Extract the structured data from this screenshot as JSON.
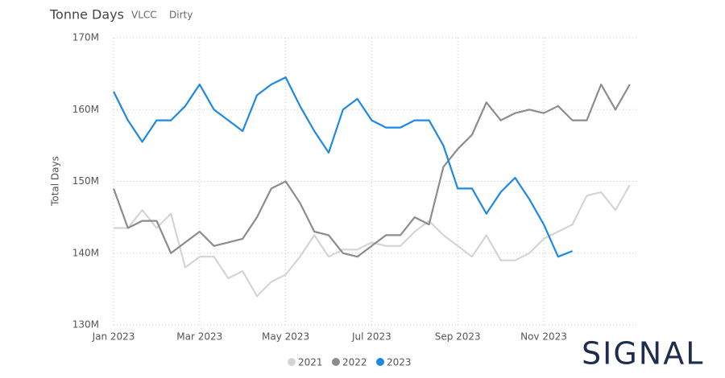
{
  "chart_data": {
    "type": "line",
    "title": "Tonne Days",
    "subtitle_tags": [
      "VLCC",
      "Dirty"
    ],
    "y_label": "Total Days",
    "categories": [
      "Jan 2023",
      null,
      null,
      null,
      null,
      null,
      "Mar 2023",
      null,
      null,
      null,
      null,
      null,
      "May 2023",
      null,
      null,
      null,
      null,
      null,
      "Jul 2023",
      null,
      null,
      null,
      null,
      null,
      "Sep 2023",
      null,
      null,
      null,
      null,
      null,
      "Nov 2023",
      null,
      null,
      null,
      null,
      null,
      null
    ],
    "series": [
      {
        "name": "2021",
        "color": "#d4d4d4",
        "values": [
          143.5,
          143.5,
          146,
          143.5,
          145.5,
          138,
          139.5,
          139.5,
          136.5,
          137.5,
          134,
          136,
          137,
          139.5,
          142.5,
          139.5,
          140.5,
          140.5,
          141.5,
          141,
          141,
          143,
          144.5,
          142.5,
          141,
          139.5,
          142.5,
          139,
          139,
          140,
          142,
          143,
          144,
          148,
          148.5,
          146,
          149.5
        ]
      },
      {
        "name": "2022",
        "color": "#8c8c8c",
        "values": [
          149,
          143.5,
          144.5,
          144.5,
          140,
          141.5,
          143,
          141,
          141.5,
          142,
          145,
          149,
          150,
          147,
          143,
          142.5,
          140,
          139.5,
          141,
          142.5,
          142.5,
          145,
          144,
          152,
          154.5,
          156.5,
          161,
          158.5,
          159.5,
          160,
          159.5,
          160.5,
          158.5,
          158.5,
          163.5,
          160,
          163.5
        ]
      },
      {
        "name": "2023",
        "color": "#1e88e5",
        "values": [
          162.5,
          158.5,
          155.5,
          158.5,
          158.5,
          160.5,
          163.5,
          160,
          158.5,
          157,
          162,
          163.5,
          164.5,
          160.5,
          157,
          154,
          160,
          161.5,
          158.5,
          157.5,
          157.5,
          158.5,
          158.5,
          155,
          149,
          149,
          145.5,
          148.5,
          150.5,
          147.5,
          144,
          139.5,
          140.3,
          null,
          null,
          null,
          null
        ]
      }
    ],
    "ylim": [
      130,
      170
    ],
    "yticks": [
      {
        "value": 130,
        "label": "130M"
      },
      {
        "value": 140,
        "label": "140M"
      },
      {
        "value": 150,
        "label": "150M"
      },
      {
        "value": 160,
        "label": "160M"
      },
      {
        "value": 170,
        "label": "170M"
      }
    ],
    "grid": true,
    "legend": "bottom",
    "logo": "SIGNAL"
  }
}
